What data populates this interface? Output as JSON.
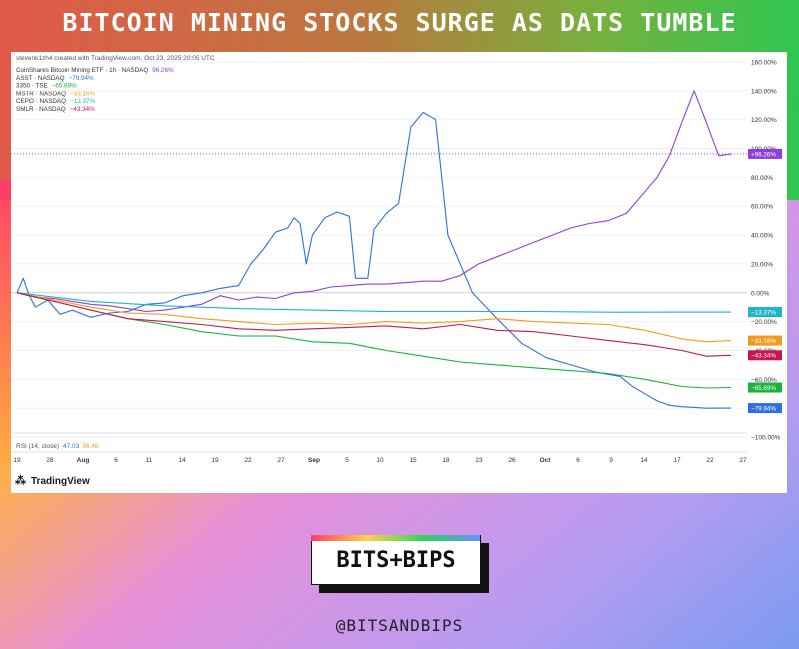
{
  "headline": "BITCOIN MINING STOCKS SURGE AS DATS TUMBLE",
  "brand": {
    "logo_text": "BITS+BIPS",
    "handle": "@BITSANDBIPS"
  },
  "tradingview": {
    "credit": "stevenk1zh4 created with TradingView.com, Oct 23, 2025 20:05 UTC",
    "watermark": "TradingView",
    "rsi_label": "RSI (14, close)",
    "rsi_value1": "47.03",
    "rsi_value2": "36.48"
  },
  "colors": {
    "WGMI": "#8e3ee0",
    "ASST": "#2f6fe4",
    "3350": "#19b23a",
    "MSTR": "#f39a1c",
    "CEPO": "#1fb4c8",
    "SMLR": "#c8174e"
  },
  "chart_data": {
    "type": "line",
    "title": "",
    "ylabel": "",
    "xlabel": "",
    "ylim": [
      -100,
      160
    ],
    "y_unit": "%",
    "y_ticks": [
      160,
      140,
      120,
      100,
      80,
      60,
      40,
      20,
      0,
      -20,
      -40,
      -60,
      -80,
      -100
    ],
    "y_tick_labels": [
      "160.00%",
      "140.00%",
      "120.00%",
      "100.00%",
      "80.00%",
      "60.00%",
      "40.00%",
      "20.00%",
      "0.00%",
      "−20.00%",
      "−40.00%",
      "−60.00%",
      "−80.00%",
      "−100.00%"
    ],
    "x_ticks": [
      "19",
      "28",
      "Aug",
      "6",
      "11",
      "14",
      "19",
      "22",
      "27",
      "Sep",
      "5",
      "10",
      "15",
      "18",
      "23",
      "26",
      "Oct",
      "6",
      "9",
      "14",
      "17",
      "22",
      "27"
    ],
    "legend": [
      {
        "symbol": "CoinShares Bitcoin Mining ETF · 1h · NASDAQ",
        "value": "96.26%"
      },
      {
        "symbol": "ASST · NASDAQ",
        "value": "−79.94%"
      },
      {
        "symbol": "3350 · TSE",
        "value": "−65.69%"
      },
      {
        "symbol": "MSTR · NASDAQ",
        "value": "−33.16%"
      },
      {
        "symbol": "CEPO · NASDAQ",
        "value": "−13.37%"
      },
      {
        "symbol": "SMLR · NASDAQ",
        "value": "−43.34%"
      }
    ],
    "end_labels": [
      "+96.26%",
      "−13.37%",
      "−33.16%",
      "−43.34%",
      "−65.69%",
      "−79.94%"
    ],
    "reference_line": 96.26,
    "series": [
      {
        "name": "CoinShares Bitcoin Mining ETF",
        "key": "WGMI",
        "x": [
          0,
          3,
          6,
          9,
          12,
          15,
          18,
          21,
          24,
          27,
          30,
          33,
          36,
          39,
          42,
          45,
          48,
          51,
          54,
          57,
          60,
          63,
          66,
          69,
          72,
          75,
          78,
          81,
          84,
          87,
          90,
          93,
          96,
          99,
          102,
          104,
          106,
          108,
          110,
          112,
          114,
          116
        ],
        "values": [
          0,
          -3,
          -4,
          -6,
          -8,
          -9,
          -11,
          -13,
          -12,
          -10,
          -8,
          -2,
          -5,
          -3,
          -4,
          0,
          1,
          4,
          5,
          6,
          6,
          7,
          8,
          8,
          12,
          20,
          25,
          30,
          35,
          40,
          45,
          48,
          50,
          55,
          70,
          80,
          95,
          118,
          140,
          118,
          95,
          96.26
        ]
      },
      {
        "name": "ASST",
        "key": "ASST",
        "x": [
          0,
          1,
          2,
          3,
          5,
          7,
          9,
          12,
          15,
          18,
          21,
          24,
          27,
          30,
          33,
          36,
          38,
          40,
          42,
          44,
          45,
          46,
          47,
          48,
          50,
          52,
          54,
          55,
          57,
          58,
          60,
          62,
          64,
          66,
          68,
          70,
          74,
          78,
          82,
          86,
          90,
          94,
          98,
          100,
          102,
          104,
          106,
          108,
          112,
          116
        ],
        "values": [
          0,
          10,
          -2,
          -10,
          -5,
          -15,
          -12,
          -17,
          -14,
          -13,
          -8,
          -7,
          -2,
          0,
          3,
          5,
          20,
          30,
          42,
          45,
          52,
          48,
          20,
          40,
          52,
          56,
          53,
          10,
          10,
          44,
          55,
          62,
          115,
          125,
          120,
          40,
          0,
          -18,
          -35,
          -45,
          -50,
          -55,
          -58,
          -65,
          -70,
          -75,
          -78,
          -79,
          -80,
          -79.94
        ]
      },
      {
        "name": "3350",
        "key": "3350",
        "x": [
          0,
          6,
          12,
          18,
          24,
          30,
          36,
          42,
          48,
          54,
          60,
          66,
          72,
          78,
          84,
          90,
          96,
          102,
          108,
          112,
          116
        ],
        "values": [
          0,
          -6,
          -12,
          -18,
          -22,
          -27,
          -30,
          -30,
          -34,
          -35,
          -40,
          -44,
          -48,
          -50,
          -52,
          -54,
          -56,
          -60,
          -65,
          -66,
          -65.69
        ]
      },
      {
        "name": "MSTR",
        "key": "MSTR",
        "x": [
          0,
          6,
          12,
          18,
          24,
          30,
          36,
          42,
          48,
          54,
          60,
          66,
          72,
          78,
          84,
          90,
          96,
          102,
          108,
          112,
          116
        ],
        "values": [
          0,
          -5,
          -10,
          -14,
          -15,
          -18,
          -20,
          -22,
          -21,
          -22,
          -20,
          -21,
          -20,
          -18,
          -20,
          -21,
          -22,
          -26,
          -32,
          -34,
          -33.16
        ]
      },
      {
        "name": "CEPO",
        "key": "CEPO",
        "x": [
          0,
          12,
          24,
          36,
          48,
          60,
          72,
          84,
          96,
          108,
          116
        ],
        "values": [
          0,
          -6,
          -9,
          -11,
          -12,
          -13,
          -13,
          -13,
          -13.5,
          -13.4,
          -13.37
        ]
      },
      {
        "name": "SMLR",
        "key": "SMLR",
        "x": [
          0,
          6,
          12,
          18,
          24,
          30,
          36,
          42,
          48,
          54,
          60,
          66,
          72,
          78,
          84,
          90,
          96,
          102,
          108,
          112,
          116
        ],
        "values": [
          0,
          -6,
          -12,
          -18,
          -20,
          -22,
          -25,
          -26,
          -25,
          -24,
          -23,
          -25,
          -22,
          -26,
          -27,
          -30,
          -33,
          -36,
          -40,
          -44,
          -43.34
        ]
      }
    ]
  }
}
